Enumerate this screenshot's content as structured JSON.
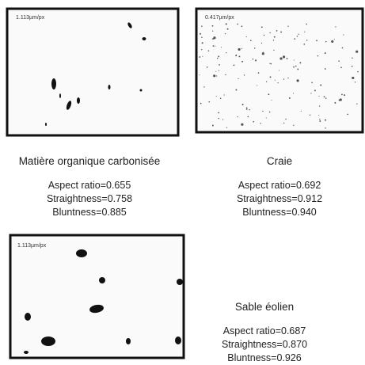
{
  "panels": [
    {
      "scale": "1.113µm/px",
      "title": "Matière organique carbonisée",
      "metrics": [
        "Aspect ratio=0.655",
        "Straightness=0.758",
        "Bluntness=0.885"
      ]
    },
    {
      "scale": "0.417µm/px",
      "title": "Craie",
      "metrics": [
        "Aspect ratio=0.692",
        "Straightness=0.912",
        "Bluntness=0.940"
      ]
    },
    {
      "scale": "1.113µm/px",
      "title": "Sable éolien",
      "metrics": [
        "Aspect ratio=0.687",
        "Straightness=0.870",
        "Bluntness=0.926"
      ]
    }
  ]
}
